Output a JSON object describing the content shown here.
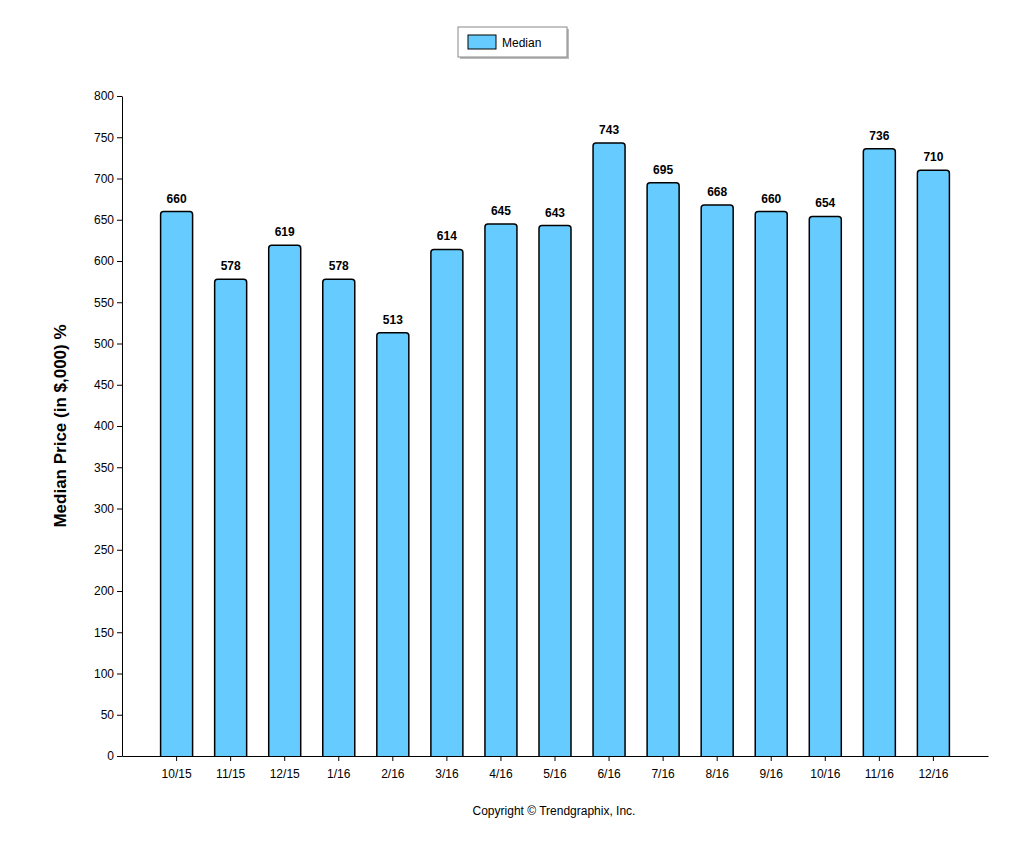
{
  "chart_data": {
    "type": "bar",
    "y_label": "Median Price (in $,000) %",
    "categories": [
      "10/15",
      "11/15",
      "12/15",
      "1/16",
      "2/16",
      "3/16",
      "4/16",
      "5/16",
      "6/16",
      "7/16",
      "8/16",
      "9/16",
      "10/16",
      "11/16",
      "12/16"
    ],
    "series": [
      {
        "name": "Median",
        "color": "#66ccff",
        "values": [
          660,
          578,
          619,
          578,
          513,
          614,
          645,
          643,
          743,
          695,
          668,
          660,
          654,
          736,
          710
        ]
      }
    ],
    "ylim": [
      0,
      800
    ],
    "yticks": [
      0,
      50,
      100,
      150,
      200,
      250,
      300,
      350,
      400,
      450,
      500,
      550,
      600,
      650,
      700,
      750,
      800
    ],
    "grid": false,
    "legend": "top",
    "data_labels": true,
    "annotations": [
      "Copyright © Trendgraphix, Inc."
    ]
  }
}
